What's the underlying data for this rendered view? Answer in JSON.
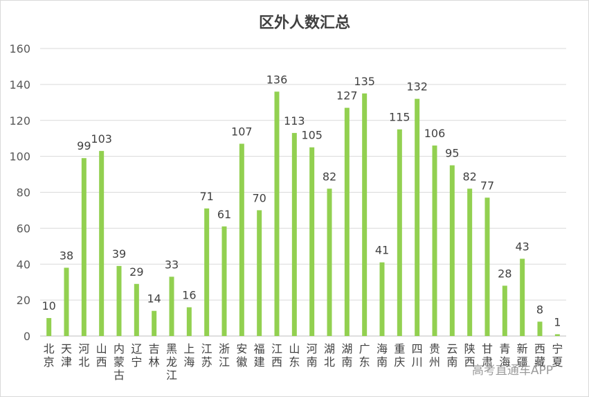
{
  "chart_data": {
    "type": "bar",
    "title": "区外人数汇总",
    "xlabel": "",
    "ylabel": "",
    "ylim": [
      0,
      160
    ],
    "yticks": [
      0,
      20,
      40,
      60,
      80,
      100,
      120,
      140,
      160
    ],
    "grid": true,
    "legend": "none",
    "bar_color": "#92d050",
    "categories": [
      "北京",
      "天津",
      "河北",
      "山西",
      "内蒙古",
      "辽宁",
      "吉林",
      "黑龙江",
      "上海",
      "江苏",
      "浙江",
      "安徽",
      "福建",
      "江西",
      "山东",
      "河南",
      "湖北",
      "湖南",
      "广东",
      "海南",
      "重庆",
      "四川",
      "贵州",
      "云南",
      "陕西",
      "甘肃",
      "青海",
      "新疆",
      "西藏",
      "宁夏"
    ],
    "values": [
      10,
      38,
      99,
      103,
      39,
      29,
      14,
      33,
      16,
      71,
      61,
      107,
      70,
      136,
      113,
      105,
      82,
      127,
      135,
      41,
      115,
      132,
      106,
      95,
      82,
      77,
      28,
      43,
      8,
      1
    ]
  },
  "watermark": "高考直通车APP"
}
